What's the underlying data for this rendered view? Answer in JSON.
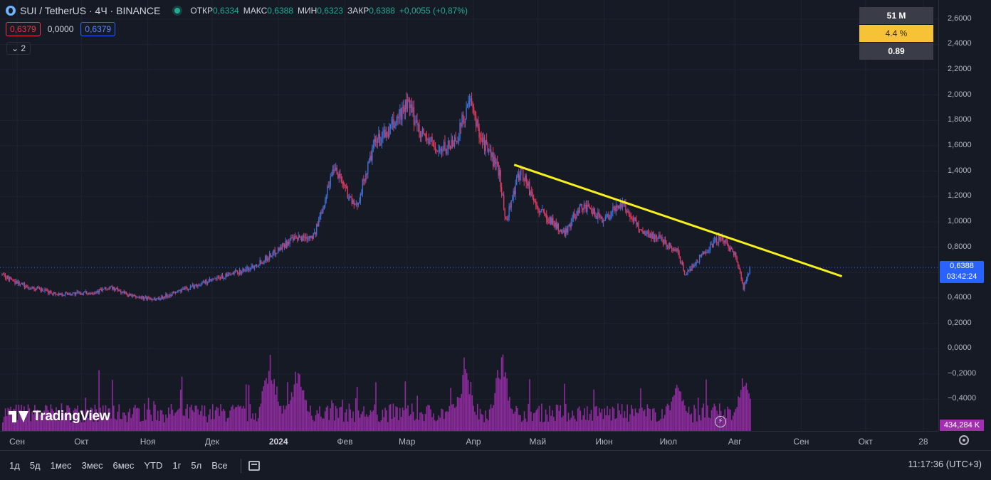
{
  "header": {
    "symbol": "SUI / TetherUS · 4Ч · BINANCE",
    "ohlc": {
      "open_label": "ОТКР",
      "open": "0,6334",
      "high_label": "МАКС",
      "high": "0,6388",
      "low_label": "МИН",
      "low": "0,6323",
      "close_label": "ЗАКР",
      "close": "0,6388",
      "change": "+0,0055 (+0,87%)"
    },
    "bid": "0,6379",
    "spread": "0,0000",
    "ask": "0,6379",
    "indicators_count": "2"
  },
  "stats_panel": [
    "51 M",
    "4.4 %",
    "0.89"
  ],
  "price_tag": {
    "price": "0,6388",
    "countdown": "03:42:24"
  },
  "volume_tag": "434,284 K",
  "logo_text": "TradingView",
  "bottom_bar": {
    "ranges": [
      "1д",
      "5д",
      "1мес",
      "3мес",
      "6мес",
      "YTD",
      "1г",
      "5л",
      "Все"
    ],
    "clock": "11:17:36 (UTC+3)"
  },
  "colors": {
    "background": "#161a25",
    "candles_up": "#3f6fd6",
    "candles_down": "#e03a60",
    "volume": "#a12fb0",
    "trendline": "#f5f01e",
    "accent": "#2962ff"
  },
  "chart_data": {
    "type": "line",
    "title": "",
    "xlabel": "",
    "ylabel": "",
    "y_ticks": [
      "2,6000",
      "2,4000",
      "2,2000",
      "2,0000",
      "1,8000",
      "1,6000",
      "1,4000",
      "1,2000",
      "1,0000",
      "0,8000",
      "0,6000",
      "0,4000",
      "0,2000",
      "0,0000",
      "−0,2000",
      "−0,4000"
    ],
    "y_values": [
      2.6,
      2.4,
      2.2,
      2.0,
      1.8,
      1.6,
      1.4,
      1.2,
      1.0,
      0.8,
      0.6,
      0.4,
      0.2,
      0.0,
      -0.2,
      -0.4
    ],
    "ylim": [
      -0.65,
      2.75
    ],
    "x_ticks": [
      {
        "label": "Сен",
        "bold": false
      },
      {
        "label": "Окт",
        "bold": false
      },
      {
        "label": "Ноя",
        "bold": false
      },
      {
        "label": "Дек",
        "bold": false
      },
      {
        "label": "2024",
        "bold": true
      },
      {
        "label": "Фев",
        "bold": false
      },
      {
        "label": "Мар",
        "bold": false
      },
      {
        "label": "Апр",
        "bold": false
      },
      {
        "label": "Май",
        "bold": false
      },
      {
        "label": "Июн",
        "bold": false
      },
      {
        "label": "Июл",
        "bold": false
      },
      {
        "label": "Авг",
        "bold": false
      },
      {
        "label": "Сен",
        "bold": false
      },
      {
        "label": "Окт",
        "bold": false
      },
      {
        "label": "28",
        "bold": false
      }
    ],
    "price_series": {
      "x": [
        "2023-08-25",
        "2023-09-05",
        "2023-09-20",
        "2023-10-05",
        "2023-10-15",
        "2023-10-25",
        "2023-11-05",
        "2023-11-20",
        "2023-12-05",
        "2023-12-18",
        "2023-12-27",
        "2024-01-06",
        "2024-01-18",
        "2024-01-27",
        "2024-02-06",
        "2024-02-15",
        "2024-02-22",
        "2024-03-01",
        "2024-03-08",
        "2024-03-16",
        "2024-03-24",
        "2024-03-30",
        "2024-04-05",
        "2024-04-13",
        "2024-04-16",
        "2024-04-23",
        "2024-05-01",
        "2024-05-08",
        "2024-05-13",
        "2024-05-21",
        "2024-06-01",
        "2024-06-09",
        "2024-06-19",
        "2024-06-27",
        "2024-07-05",
        "2024-07-09",
        "2024-07-17",
        "2024-07-25",
        "2024-08-01",
        "2024-08-05",
        "2024-08-08"
      ],
      "close": [
        0.58,
        0.49,
        0.43,
        0.44,
        0.48,
        0.41,
        0.39,
        0.48,
        0.56,
        0.63,
        0.72,
        0.85,
        0.9,
        1.45,
        1.1,
        1.62,
        1.72,
        1.93,
        1.7,
        1.55,
        1.65,
        1.95,
        1.65,
        1.4,
        1.0,
        1.42,
        1.1,
        1.0,
        0.9,
        1.13,
        1.02,
        1.15,
        0.92,
        0.87,
        0.77,
        0.58,
        0.75,
        0.88,
        0.75,
        0.48,
        0.6388
      ]
    },
    "trendline": {
      "x": [
        "2024-04-20",
        "2024-09-20"
      ],
      "y": [
        1.45,
        0.57
      ]
    },
    "current_price": 0.6388,
    "volume_peaks": [
      {
        "x": "2023-12-28",
        "value": 0.85
      },
      {
        "x": "2024-01-10",
        "value": 0.72
      },
      {
        "x": "2024-03-28",
        "value": 0.78
      },
      {
        "x": "2024-04-14",
        "value": 0.82
      },
      {
        "x": "2024-07-05",
        "value": 0.58
      },
      {
        "x": "2024-08-05",
        "value": 0.56
      }
    ]
  }
}
